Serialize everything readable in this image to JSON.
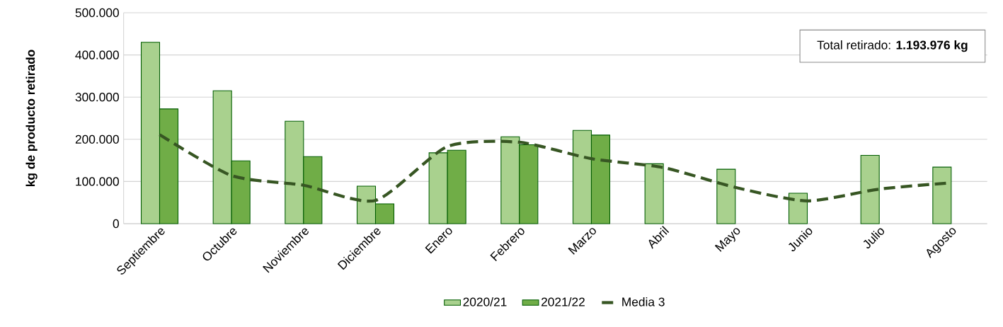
{
  "chart_data": {
    "type": "bar",
    "ylabel": "kg de producto retirado",
    "categories": [
      "Septiembre",
      "Octubre",
      "Noviembre",
      "Diciembre",
      "Enero",
      "Febrero",
      "Marzo",
      "Abril",
      "Mayo",
      "Junio",
      "Julio",
      "Agosto"
    ],
    "series": [
      {
        "name": "2020/21",
        "color": "#a9d18e",
        "values": [
          430000,
          315000,
          243000,
          89000,
          168000,
          206000,
          221000,
          142000,
          129000,
          72000,
          162000,
          134000
        ]
      },
      {
        "name": "2021/22",
        "color": "#70ad47",
        "values": [
          272000,
          149000,
          159000,
          47000,
          174000,
          187000,
          210000,
          null,
          null,
          null,
          null,
          null
        ]
      },
      {
        "name": "Media 3",
        "type": "line",
        "color": "#375623",
        "line_style": "dashed",
        "values": [
          211000,
          114000,
          91000,
          55000,
          183000,
          193000,
          154000,
          133000,
          86000,
          54000,
          82000,
          97000
        ]
      }
    ],
    "ylim": [
      0,
      500000
    ],
    "yticks": [
      0,
      {
        "value": 100000,
        "label": "100.000"
      },
      {
        "value": 200000,
        "label": "200.000"
      },
      {
        "value": 300000,
        "label": "300.000"
      },
      {
        "value": 400000,
        "label": "400.000"
      },
      {
        "value": 500000,
        "label": "500.000"
      }
    ],
    "grid": "y",
    "legend": "bottom",
    "annotations": [
      "Total retirado: **1.193.976 kg**"
    ]
  }
}
